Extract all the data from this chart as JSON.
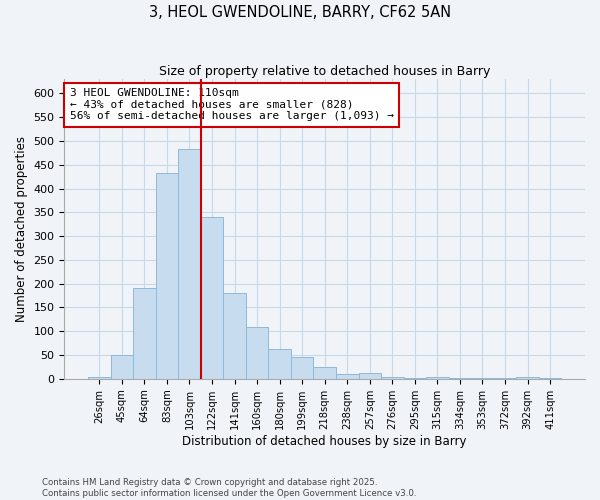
{
  "title": "3, HEOL GWENDOLINE, BARRY, CF62 5AN",
  "subtitle": "Size of property relative to detached houses in Barry",
  "xlabel": "Distribution of detached houses by size in Barry",
  "ylabel": "Number of detached properties",
  "bar_color": "#c8dcf0",
  "bar_edge_color": "#90b8d8",
  "categories": [
    "26sqm",
    "45sqm",
    "64sqm",
    "83sqm",
    "103sqm",
    "122sqm",
    "141sqm",
    "160sqm",
    "180sqm",
    "199sqm",
    "218sqm",
    "238sqm",
    "257sqm",
    "276sqm",
    "295sqm",
    "315sqm",
    "334sqm",
    "353sqm",
    "372sqm",
    "392sqm",
    "411sqm"
  ],
  "values": [
    3,
    50,
    192,
    432,
    484,
    340,
    180,
    110,
    62,
    45,
    25,
    10,
    12,
    3,
    2,
    4,
    1,
    1,
    1,
    4,
    1
  ],
  "vline_x": 4.5,
  "vline_color": "#cc0000",
  "annotation_text": "3 HEOL GWENDOLINE: 110sqm\n← 43% of detached houses are smaller (828)\n56% of semi-detached houses are larger (1,093) →",
  "annotation_box_color": "white",
  "annotation_box_edge": "#cc0000",
  "ylim": [
    0,
    630
  ],
  "yticks": [
    0,
    50,
    100,
    150,
    200,
    250,
    300,
    350,
    400,
    450,
    500,
    550,
    600
  ],
  "footer": "Contains HM Land Registry data © Crown copyright and database right 2025.\nContains public sector information licensed under the Open Government Licence v3.0.",
  "grid_color": "#c8d8e8",
  "background_color": "#f0f4f8"
}
